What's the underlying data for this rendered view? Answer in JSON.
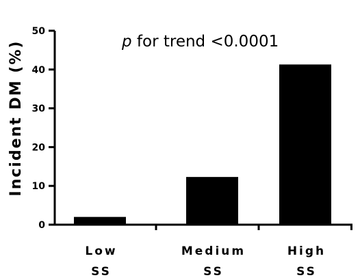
{
  "chart_data": {
    "type": "bar",
    "categories": [
      [
        "Low",
        "SS"
      ],
      [
        "Medium",
        "SS"
      ],
      [
        "High",
        "SS"
      ]
    ],
    "values": [
      2,
      12.3,
      41.3
    ],
    "ylabel": "Incident DM (%)",
    "ylim": [
      0,
      50
    ],
    "yticks": [
      0,
      10,
      20,
      30,
      40,
      50
    ],
    "annotation": {
      "italic": "p",
      "text": " for trend <0.0001"
    },
    "bar_color": "#000000",
    "grid": false
  }
}
